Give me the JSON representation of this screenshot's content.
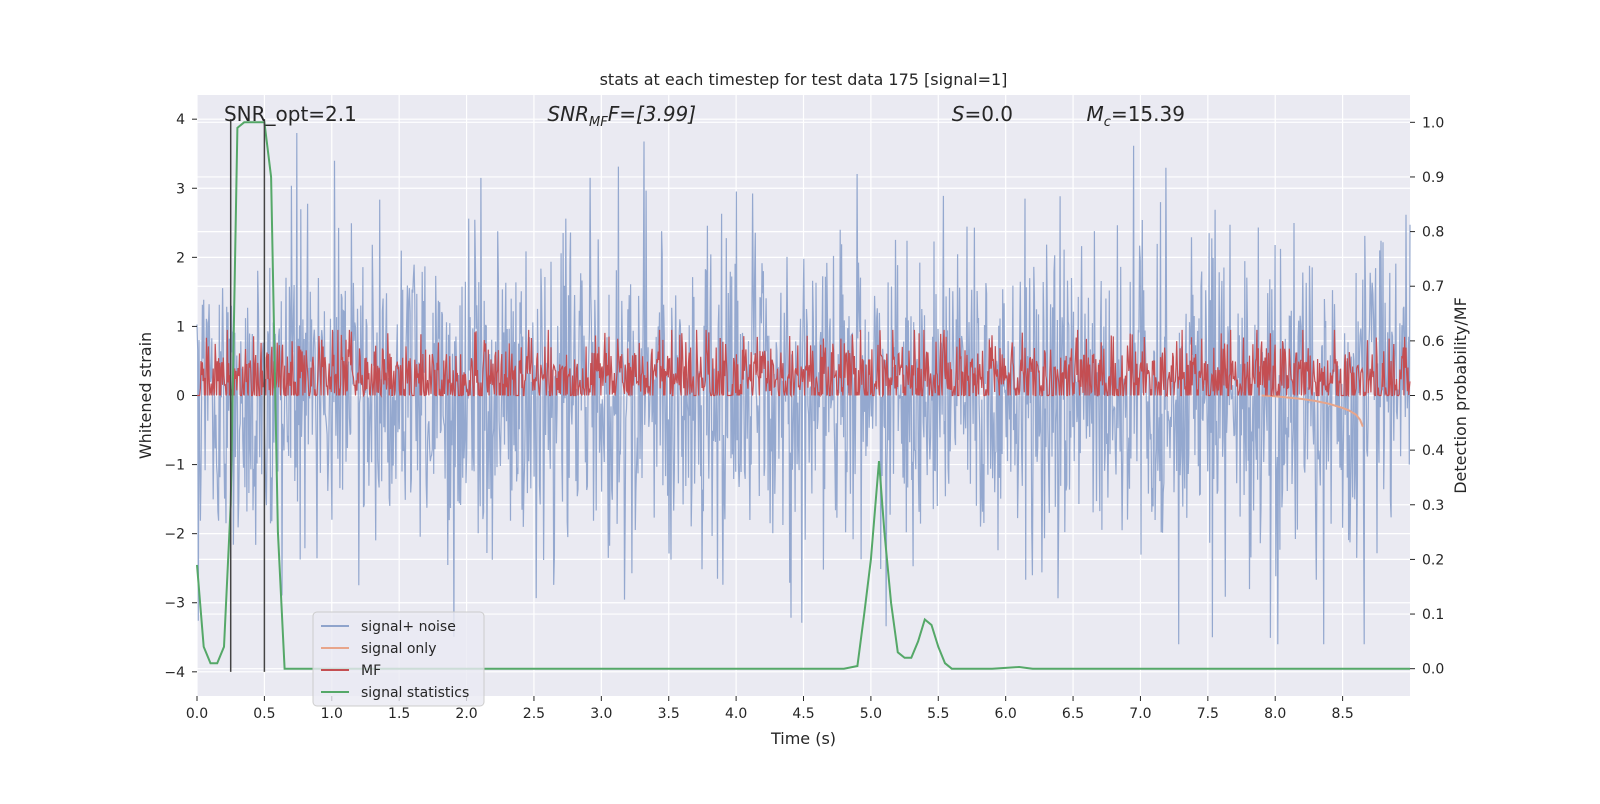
{
  "chart_data": {
    "type": "line",
    "title": "stats at each timestep for test data 175 [signal=1]",
    "xlabel": "Time (s)",
    "ylabel": "Whitened strain",
    "y2label": "Detection probability/MF",
    "xlim": [
      0.0,
      9.0
    ],
    "ylim": [
      -4.35,
      4.35
    ],
    "y2lim": [
      -0.05,
      1.05
    ],
    "x_ticks": [
      "0.0",
      "0.5",
      "1.0",
      "1.5",
      "2.0",
      "2.5",
      "3.0",
      "3.5",
      "4.0",
      "4.5",
      "5.0",
      "5.5",
      "6.0",
      "6.5",
      "7.0",
      "7.5",
      "8.0",
      "8.5"
    ],
    "y_ticks": [
      "−4",
      "−3",
      "−2",
      "−1",
      "0",
      "1",
      "2",
      "3",
      "4"
    ],
    "y2_ticks": [
      "0.0",
      "0.1",
      "0.2",
      "0.3",
      "0.4",
      "0.5",
      "0.6",
      "0.7",
      "0.8",
      "0.9",
      "1.0"
    ],
    "grid": true,
    "legend_position": "lower-left",
    "annotations": {
      "snr_opt": {
        "text": "SNR_opt=2.1",
        "x": 0.2
      },
      "snr_mf": {
        "prefix": "SNR",
        "sub": "MF",
        "suffix": "F=[3.99]",
        "x": 2.6
      },
      "s": {
        "prefix": "S",
        "suffix": "=0.0",
        "x": 5.6
      },
      "mc": {
        "prefix": "M",
        "sub": "c",
        "suffix": "=15.39",
        "x": 6.6
      }
    },
    "vertical_markers": [
      0.25,
      0.5
    ],
    "series": [
      {
        "name": "signal+ noise",
        "color": "#8fa4cc",
        "axis": "left",
        "envelope_hint": {
          "std": 1.0,
          "seed": 175,
          "samples": 1800
        }
      },
      {
        "name": "signal only",
        "color": "#e8a58a",
        "axis": "left",
        "x": [
          7.9,
          8.0,
          8.1,
          8.2,
          8.3,
          8.4,
          8.5,
          8.55,
          8.6,
          8.63,
          8.65
        ],
        "y": [
          0.0,
          -0.01,
          -0.03,
          -0.05,
          -0.08,
          -0.12,
          -0.18,
          -0.22,
          -0.28,
          -0.35,
          -0.45
        ]
      },
      {
        "name": "MF",
        "color": "#c44e52",
        "axis": "right",
        "level_hint": {
          "mean": 0.53,
          "spread": 0.04,
          "samples": 1800
        }
      },
      {
        "name": "signal statistics",
        "color": "#55a868",
        "axis": "right",
        "x": [
          0.0,
          0.05,
          0.1,
          0.15,
          0.2,
          0.25,
          0.3,
          0.35,
          0.4,
          0.45,
          0.5,
          0.55,
          0.6,
          0.65,
          0.7,
          1.0,
          2.0,
          3.0,
          4.0,
          4.8,
          4.9,
          4.95,
          5.0,
          5.06,
          5.1,
          5.15,
          5.2,
          5.25,
          5.3,
          5.35,
          5.4,
          5.45,
          5.5,
          5.55,
          5.6,
          5.7,
          5.9,
          6.1,
          6.2,
          6.5,
          7.0,
          8.0,
          8.5,
          9.0
        ],
        "y": [
          0.19,
          0.04,
          0.01,
          0.01,
          0.04,
          0.3,
          0.99,
          1.0,
          1.0,
          1.0,
          1.0,
          0.9,
          0.25,
          0.0,
          0.0,
          0.0,
          0.0,
          0.0,
          0.0,
          0.0,
          0.005,
          0.1,
          0.2,
          0.38,
          0.25,
          0.12,
          0.03,
          0.02,
          0.02,
          0.05,
          0.09,
          0.08,
          0.04,
          0.01,
          0.0,
          0.0,
          0.0,
          0.003,
          0.0,
          0.0,
          0.0,
          0.0,
          0.0,
          0.0
        ]
      }
    ],
    "colors": {
      "plot_background": "#eaeaf2",
      "grid": "#ffffff",
      "marker": "#444444"
    }
  }
}
